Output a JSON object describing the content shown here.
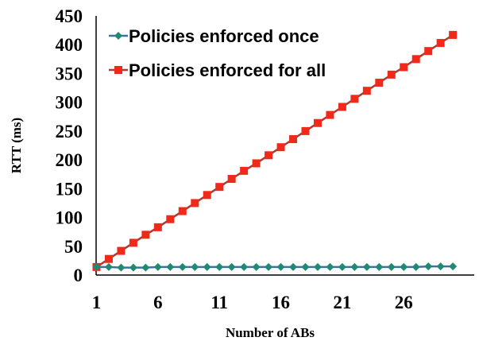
{
  "chart_data": {
    "type": "line",
    "title": "",
    "xlabel": "Number of ABs",
    "ylabel": "RTT (ms)",
    "x": [
      1,
      2,
      3,
      4,
      5,
      6,
      7,
      8,
      9,
      10,
      11,
      12,
      13,
      14,
      15,
      16,
      17,
      18,
      19,
      20,
      21,
      22,
      23,
      24,
      25,
      26,
      27,
      28,
      29,
      30
    ],
    "x_tick_labels": [
      "1",
      "6",
      "11",
      "16",
      "21",
      "26"
    ],
    "y_tick_labels": [
      "0",
      "50",
      "100",
      "150",
      "200",
      "250",
      "300",
      "350",
      "400",
      "450"
    ],
    "xlim": [
      1,
      30
    ],
    "ylim": [
      0,
      450
    ],
    "grid": false,
    "legend_position": "top-left",
    "series": [
      {
        "name": "Policies enforced once",
        "color": "#1f8a70",
        "line_color": "#3a6fb0",
        "marker": "diamond",
        "values": [
          14,
          14,
          13,
          13,
          13,
          14,
          14,
          14,
          14,
          14,
          14,
          14,
          14,
          14,
          14,
          14,
          14,
          14,
          14,
          14,
          14,
          14,
          14,
          14,
          14,
          14,
          14,
          15,
          15,
          15
        ]
      },
      {
        "name": "Policies enforced for all",
        "color": "#f02a1a",
        "line_color": "#b03a2e",
        "marker": "square",
        "values": [
          14,
          28,
          42,
          56,
          70,
          83,
          97,
          111,
          125,
          139,
          153,
          167,
          181,
          194,
          208,
          222,
          236,
          250,
          264,
          278,
          292,
          306,
          320,
          334,
          348,
          361,
          375,
          389,
          403,
          417
        ]
      }
    ]
  }
}
